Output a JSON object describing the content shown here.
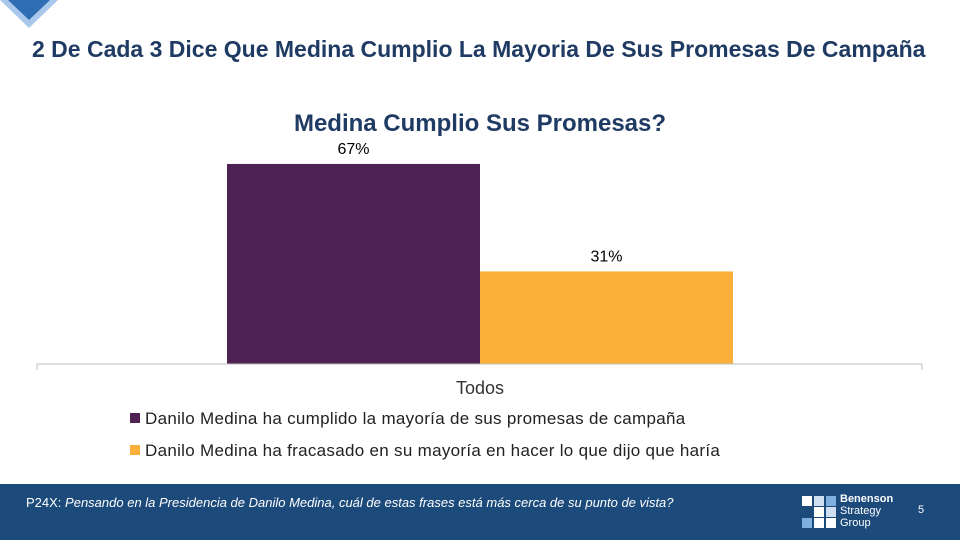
{
  "slide": {
    "title": "2 De Cada 3 Dice Que Medina Cumplio La Mayoria De Sus Promesas De Campaña"
  },
  "colors": {
    "title": "#1f3b63",
    "footer_bg": "#1c4a7b",
    "corner_accent": "#4a90d9"
  },
  "chart_data": {
    "type": "bar",
    "title": "Medina Cumplio Sus Promesas?",
    "categories": [
      "Todos"
    ],
    "series": [
      {
        "name": "Danilo Medina ha cumplido la mayoría de sus promesas de campaña",
        "values": [
          67
        ],
        "labels": [
          "67%"
        ],
        "color": "#4e2253"
      },
      {
        "name": "Danilo Medina ha fracasado en su mayoría en hacer lo que dijo que haría",
        "values": [
          31
        ],
        "labels": [
          "31%"
        ],
        "color": "#fbb03b"
      }
    ],
    "ylim": [
      0,
      70
    ],
    "grid": false,
    "legend_position": "bottom",
    "xlabel": "",
    "ylabel": ""
  },
  "footer": {
    "question_code": "P24X:",
    "question_text": "Pensando en la Presidencia de Danilo Medina, cuál de estas frases está más cerca de su punto de vista?",
    "logo_lines": [
      "Benenson",
      "Strategy",
      "Group"
    ],
    "logo_icon": "bsg-logo-icon",
    "page_number": "5"
  }
}
